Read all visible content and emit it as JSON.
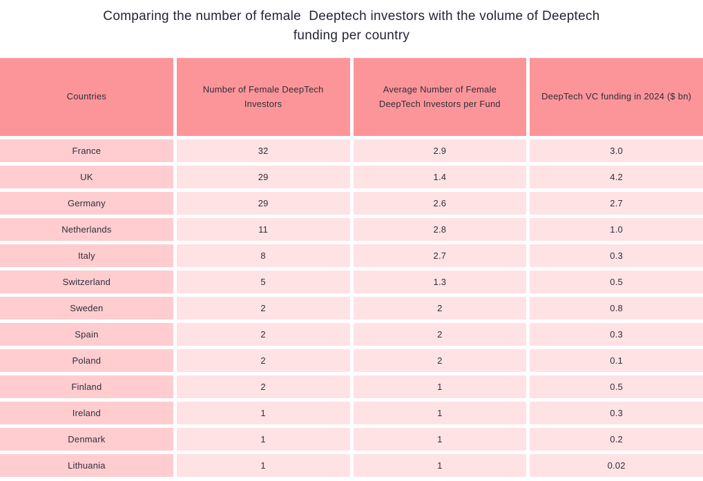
{
  "title": {
    "line1": "Comparing the number of female  Deeptech investors with the volume of Deeptech",
    "line2": "funding per country"
  },
  "colors": {
    "header_bg": "#FC9599",
    "country_cell_bg": "#FFCDD0",
    "value_cell_bg": "#FFE2E4",
    "title_text": "#222433",
    "cell_text": "#2E2E38",
    "page_bg": "#FFFFFF"
  },
  "chart_data": {
    "type": "table",
    "title": "Comparing the number of female  Deeptech investors with the volume of Deeptech funding per country",
    "columns": [
      "Countries",
      "Number of Female DeepTech Investors",
      "Average Number of Female DeepTech Investors per Fund",
      "DeepTech VC funding in 2024 ($ bn)"
    ],
    "rows": [
      [
        "France",
        "32",
        "2.9",
        "3.0"
      ],
      [
        "UK",
        "29",
        "1.4",
        "4.2"
      ],
      [
        "Germany",
        "29",
        "2.6",
        "2.7"
      ],
      [
        "Netherlands",
        "11",
        "2.8",
        "1.0"
      ],
      [
        "Italy",
        "8",
        "2.7",
        "0.3"
      ],
      [
        "Switzerland",
        "5",
        "1.3",
        "0.5"
      ],
      [
        "Sweden",
        "2",
        "2",
        "0.8"
      ],
      [
        "Spain",
        "2",
        "2",
        "0.3"
      ],
      [
        "Poland",
        "2",
        "2",
        "0.1"
      ],
      [
        "Finland",
        "2",
        "1",
        "0.5"
      ],
      [
        "Ireland",
        "1",
        "1",
        "0.3"
      ],
      [
        "Denmark",
        "1",
        "1",
        "0.2"
      ],
      [
        "Lithuania",
        "1",
        "1",
        "0.02"
      ]
    ]
  }
}
